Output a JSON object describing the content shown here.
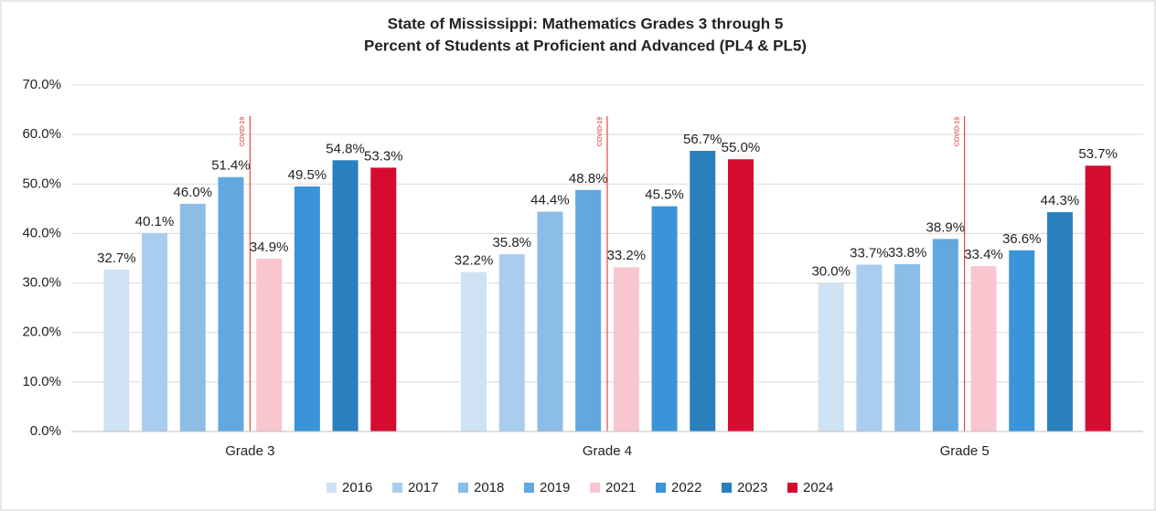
{
  "chart_data": {
    "type": "bar",
    "title": "State of Mississippi: Mathematics Grades 3 through 5",
    "subtitle": "Percent of Students at Proficient and Advanced (PL4 & PL5)",
    "annotation": "COVID-19",
    "categories": [
      "Grade 3",
      "Grade 4",
      "Grade 5"
    ],
    "series": [
      {
        "name": "2016",
        "color": "#cfe2f3",
        "values": [
          32.7,
          32.2,
          30.0
        ],
        "value_labels": [
          "32.7%",
          "32.2%",
          "30.0%"
        ]
      },
      {
        "name": "2017",
        "color": "#a9cdee",
        "values": [
          40.1,
          35.8,
          33.7
        ],
        "value_labels": [
          "40.1%",
          "35.8%",
          "33.7%"
        ]
      },
      {
        "name": "2018",
        "color": "#8bbde6",
        "values": [
          46.0,
          44.4,
          33.8
        ],
        "value_labels": [
          "46.0%",
          "44.4%",
          "33.8%"
        ]
      },
      {
        "name": "2019",
        "color": "#62a8df",
        "values": [
          51.4,
          48.8,
          38.9
        ],
        "value_labels": [
          "51.4%",
          "48.8%",
          "38.9%"
        ]
      },
      {
        "name": "2021",
        "color": "#f9c6d0",
        "values": [
          34.9,
          33.2,
          33.4
        ],
        "value_labels": [
          "34.9%",
          "33.2%",
          "33.4%"
        ]
      },
      {
        "name": "2022",
        "color": "#3b94d8",
        "values": [
          49.5,
          45.5,
          36.6
        ],
        "value_labels": [
          "49.5%",
          "45.5%",
          "36.6%"
        ]
      },
      {
        "name": "2023",
        "color": "#2a7fbd",
        "values": [
          54.8,
          56.7,
          44.3
        ],
        "value_labels": [
          "54.8%",
          "56.7%",
          "44.3%"
        ]
      },
      {
        "name": "2024",
        "color": "#d50b30",
        "values": [
          53.3,
          55.0,
          53.7
        ],
        "value_labels": [
          "53.3%",
          "55.0%",
          "53.7%"
        ]
      }
    ],
    "ylim": [
      0,
      70
    ],
    "yticks": [
      {
        "value": 0,
        "label": "0.0%"
      },
      {
        "value": 10,
        "label": "10.0%"
      },
      {
        "value": 20,
        "label": "20.0%"
      },
      {
        "value": 30,
        "label": "30.0%"
      },
      {
        "value": 40,
        "label": "40.0%"
      },
      {
        "value": 50,
        "label": "50.0%"
      },
      {
        "value": 60,
        "label": "60.0%"
      },
      {
        "value": 70,
        "label": "70.0%"
      }
    ],
    "grid": true,
    "legend": "bottom"
  }
}
